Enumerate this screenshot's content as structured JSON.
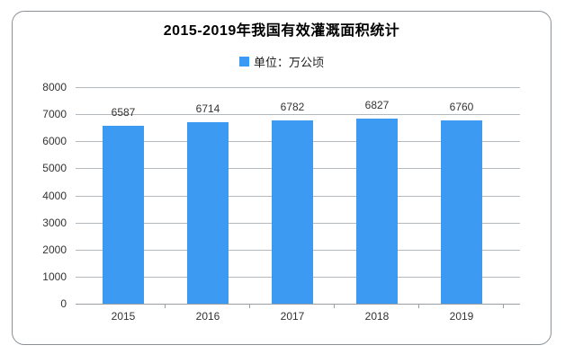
{
  "card": {
    "title": "2015-2019年我国有效灌溉面积统计",
    "legend": {
      "label": "单位：万公顷"
    }
  },
  "colors": {
    "bar": "#3d9af2",
    "grid": "#b4b9bd",
    "axis": "#9aa0a6",
    "text": "#333333",
    "title_text": "#000000",
    "card_border": "#8c9196",
    "background": "#ffffff"
  },
  "chart_data": {
    "type": "bar",
    "title": "2015-2019年我国有效灌溉面积统计",
    "legend": [
      "单位：万公顷"
    ],
    "legend_position": "top",
    "categories": [
      "2015",
      "2016",
      "2017",
      "2018",
      "2019"
    ],
    "values": [
      6587,
      6714,
      6782,
      6827,
      6760
    ],
    "xlabel": "",
    "ylabel": "",
    "ylim": [
      0,
      8000
    ],
    "yticks": [
      0,
      1000,
      2000,
      3000,
      4000,
      5000,
      6000,
      7000,
      8000
    ],
    "grid": true,
    "value_labels": true,
    "bar_color": "#3d9af2"
  }
}
